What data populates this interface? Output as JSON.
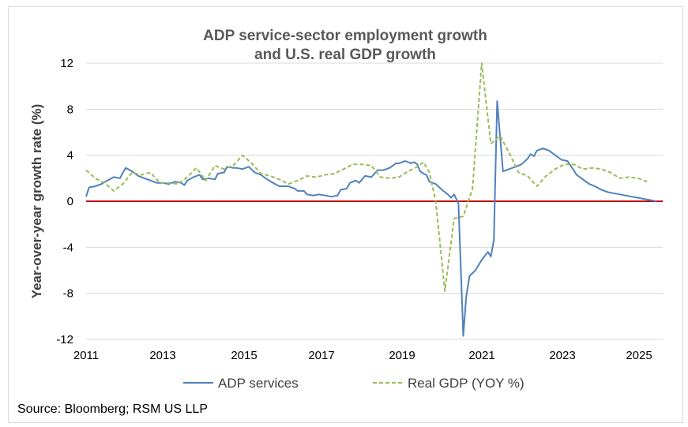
{
  "chart_data": {
    "type": "line",
    "title": [
      "ADP service-sector employment growth",
      "and U.S. real GDP growth"
    ],
    "ylabel": "Year-over-year growth rate (%)",
    "xlabel": "",
    "xlim": [
      2011,
      2025.67
    ],
    "ylim": [
      -12,
      12
    ],
    "x_ticks": [
      2011,
      2013,
      2015,
      2017,
      2019,
      2021,
      2023,
      2025
    ],
    "y_ticks": [
      -12,
      -8,
      -4,
      0,
      4,
      8,
      12
    ],
    "grid": "horizontal",
    "legend_position": "bottom",
    "zero_line_color": "#c00000",
    "series": [
      {
        "name": "ADP services",
        "color": "#4f81bd",
        "style": "solid",
        "points": [
          [
            2011.0,
            0.4
          ],
          [
            2011.08,
            1.2
          ],
          [
            2011.25,
            1.3
          ],
          [
            2011.42,
            1.5
          ],
          [
            2011.58,
            1.8
          ],
          [
            2011.75,
            2.1
          ],
          [
            2011.92,
            2.0
          ],
          [
            2012.0,
            2.5
          ],
          [
            2012.08,
            2.9
          ],
          [
            2012.25,
            2.6
          ],
          [
            2012.42,
            2.2
          ],
          [
            2012.58,
            2.0
          ],
          [
            2012.75,
            1.8
          ],
          [
            2012.92,
            1.6
          ],
          [
            2013.08,
            1.6
          ],
          [
            2013.25,
            1.5
          ],
          [
            2013.42,
            1.7
          ],
          [
            2013.58,
            1.6
          ],
          [
            2013.67,
            1.4
          ],
          [
            2013.75,
            1.8
          ],
          [
            2013.92,
            2.1
          ],
          [
            2014.08,
            2.3
          ],
          [
            2014.17,
            1.9
          ],
          [
            2014.33,
            2.0
          ],
          [
            2014.5,
            1.9
          ],
          [
            2014.58,
            2.4
          ],
          [
            2014.75,
            2.5
          ],
          [
            2014.83,
            3.0
          ],
          [
            2015.0,
            2.9
          ],
          [
            2015.08,
            2.9
          ],
          [
            2015.25,
            2.8
          ],
          [
            2015.42,
            3.0
          ],
          [
            2015.58,
            2.5
          ],
          [
            2015.75,
            2.3
          ],
          [
            2015.92,
            1.9
          ],
          [
            2016.08,
            1.6
          ],
          [
            2016.25,
            1.3
          ],
          [
            2016.5,
            1.3
          ],
          [
            2016.67,
            1.1
          ],
          [
            2016.75,
            0.9
          ],
          [
            2016.92,
            0.9
          ],
          [
            2017.0,
            0.6
          ],
          [
            2017.17,
            0.5
          ],
          [
            2017.33,
            0.6
          ],
          [
            2017.5,
            0.5
          ],
          [
            2017.67,
            0.4
          ],
          [
            2017.83,
            0.5
          ],
          [
            2017.92,
            1.0
          ],
          [
            2018.08,
            1.1
          ],
          [
            2018.17,
            1.6
          ],
          [
            2018.33,
            1.8
          ],
          [
            2018.42,
            1.6
          ],
          [
            2018.58,
            2.2
          ],
          [
            2018.75,
            2.1
          ],
          [
            2018.92,
            2.7
          ],
          [
            2019.08,
            2.7
          ],
          [
            2019.25,
            2.9
          ],
          [
            2019.42,
            3.3
          ],
          [
            2019.5,
            3.3
          ],
          [
            2019.67,
            3.5
          ],
          [
            2019.83,
            3.3
          ],
          [
            2019.92,
            3.4
          ],
          [
            2020.0,
            3.2
          ],
          [
            2020.08,
            2.6
          ],
          [
            2020.17,
            2.4
          ],
          [
            2020.25,
            2.3
          ],
          [
            2020.33,
            1.7
          ],
          [
            2020.5,
            1.5
          ],
          [
            2020.67,
            1.0
          ],
          [
            2020.83,
            0.6
          ],
          [
            2020.92,
            0.3
          ],
          [
            2021.0,
            0.6
          ],
          [
            2021.12,
            -0.2
          ],
          [
            2021.25,
            -11.7
          ],
          [
            2021.33,
            -8.3
          ],
          [
            2021.42,
            -6.5
          ],
          [
            2021.58,
            -6.0
          ],
          [
            2021.75,
            -5.1
          ],
          [
            2021.92,
            -4.4
          ],
          [
            2022.0,
            -4.8
          ],
          [
            2022.08,
            -3.4
          ],
          [
            2022.17,
            8.7
          ],
          [
            2022.33,
            2.6
          ],
          [
            2022.5,
            2.8
          ],
          [
            2022.67,
            3.0
          ],
          [
            2022.83,
            3.2
          ],
          [
            2023.0,
            3.7
          ],
          [
            2023.08,
            4.1
          ],
          [
            2023.17,
            3.9
          ],
          [
            2023.25,
            4.4
          ],
          [
            2023.42,
            4.6
          ],
          [
            2023.58,
            4.4
          ],
          [
            2023.75,
            4.0
          ],
          [
            2023.92,
            3.6
          ],
          [
            2024.08,
            3.5
          ],
          [
            2024.17,
            3.1
          ],
          [
            2024.33,
            2.3
          ],
          [
            2024.5,
            1.9
          ],
          [
            2024.67,
            1.5
          ],
          [
            2024.83,
            1.3
          ],
          [
            2025.0,
            1.0
          ],
          [
            2025.17,
            0.8
          ],
          [
            2025.33,
            0.7
          ],
          [
            2025.5,
            0.6
          ],
          [
            2025.67,
            0.5
          ],
          [
            2025.83,
            0.4
          ],
          [
            2026.0,
            0.3
          ],
          [
            2026.17,
            0.2
          ],
          [
            2026.33,
            0.1
          ],
          [
            2026.5,
            0.0
          ]
        ]
      },
      {
        "name": "Real GDP (YOY %)",
        "color": "#9bbb59",
        "style": "dashed",
        "points": [
          [
            2011.0,
            2.7
          ],
          [
            2011.25,
            2.0
          ],
          [
            2011.5,
            1.6
          ],
          [
            2011.75,
            0.9
          ],
          [
            2012.0,
            1.5
          ],
          [
            2012.25,
            2.5
          ],
          [
            2012.5,
            2.3
          ],
          [
            2012.75,
            2.5
          ],
          [
            2013.0,
            1.6
          ],
          [
            2013.25,
            1.6
          ],
          [
            2013.5,
            1.5
          ],
          [
            2013.75,
            2.1
          ],
          [
            2014.0,
            2.9
          ],
          [
            2014.25,
            1.8
          ],
          [
            2014.5,
            3.1
          ],
          [
            2014.75,
            2.8
          ],
          [
            2015.0,
            3.1
          ],
          [
            2015.25,
            4.0
          ],
          [
            2015.5,
            3.3
          ],
          [
            2015.75,
            2.4
          ],
          [
            2016.0,
            2.2
          ],
          [
            2016.25,
            1.9
          ],
          [
            2016.5,
            1.5
          ],
          [
            2016.75,
            1.8
          ],
          [
            2017.0,
            2.2
          ],
          [
            2017.25,
            2.1
          ],
          [
            2017.5,
            2.3
          ],
          [
            2017.75,
            2.4
          ],
          [
            2018.0,
            2.8
          ],
          [
            2018.25,
            3.2
          ],
          [
            2018.5,
            3.2
          ],
          [
            2018.75,
            3.1
          ],
          [
            2019.0,
            2.1
          ],
          [
            2019.25,
            2.0
          ],
          [
            2019.5,
            2.1
          ],
          [
            2019.75,
            2.6
          ],
          [
            2020.0,
            3.0
          ],
          [
            2020.17,
            3.4
          ],
          [
            2020.33,
            2.5
          ],
          [
            2020.5,
            0.0
          ],
          [
            2020.75,
            -7.8
          ],
          [
            2021.0,
            -1.5
          ],
          [
            2021.25,
            -1.3
          ],
          [
            2021.5,
            1.1
          ],
          [
            2021.75,
            12.0
          ],
          [
            2022.0,
            5.0
          ],
          [
            2022.25,
            5.7
          ],
          [
            2022.5,
            4.2
          ],
          [
            2022.75,
            2.5
          ],
          [
            2023.0,
            2.2
          ],
          [
            2023.25,
            1.3
          ],
          [
            2023.5,
            2.2
          ],
          [
            2023.75,
            2.8
          ],
          [
            2024.0,
            3.2
          ],
          [
            2024.25,
            3.2
          ],
          [
            2024.5,
            2.8
          ],
          [
            2024.75,
            2.9
          ],
          [
            2025.0,
            2.8
          ],
          [
            2025.25,
            2.5
          ],
          [
            2025.5,
            2.0
          ],
          [
            2025.75,
            2.1
          ],
          [
            2026.0,
            2.0
          ],
          [
            2026.25,
            1.7
          ]
        ]
      }
    ]
  },
  "source": "Source: Bloomberg; RSM US LLP"
}
